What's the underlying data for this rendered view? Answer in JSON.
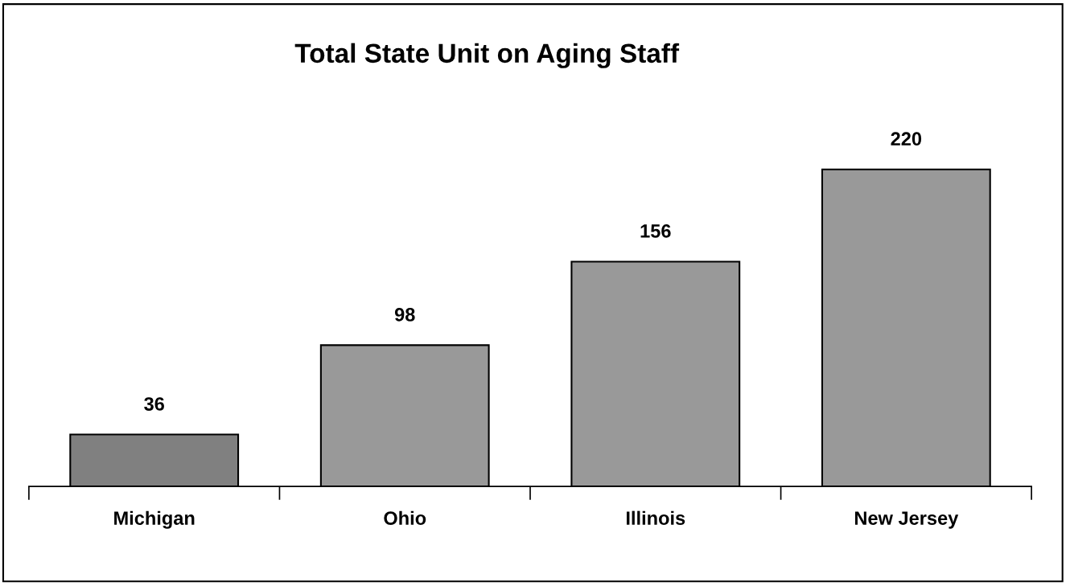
{
  "chart_data": {
    "type": "bar",
    "title": "Total State Unit on Aging Staff",
    "categories": [
      "Michigan",
      "Ohio",
      "Illinois",
      "New Jersey"
    ],
    "values": [
      36,
      98,
      156,
      220
    ],
    "colors": [
      "#808080",
      "#999999",
      "#999999",
      "#999999"
    ],
    "data_labels": true,
    "grid": false,
    "legend": false
  }
}
